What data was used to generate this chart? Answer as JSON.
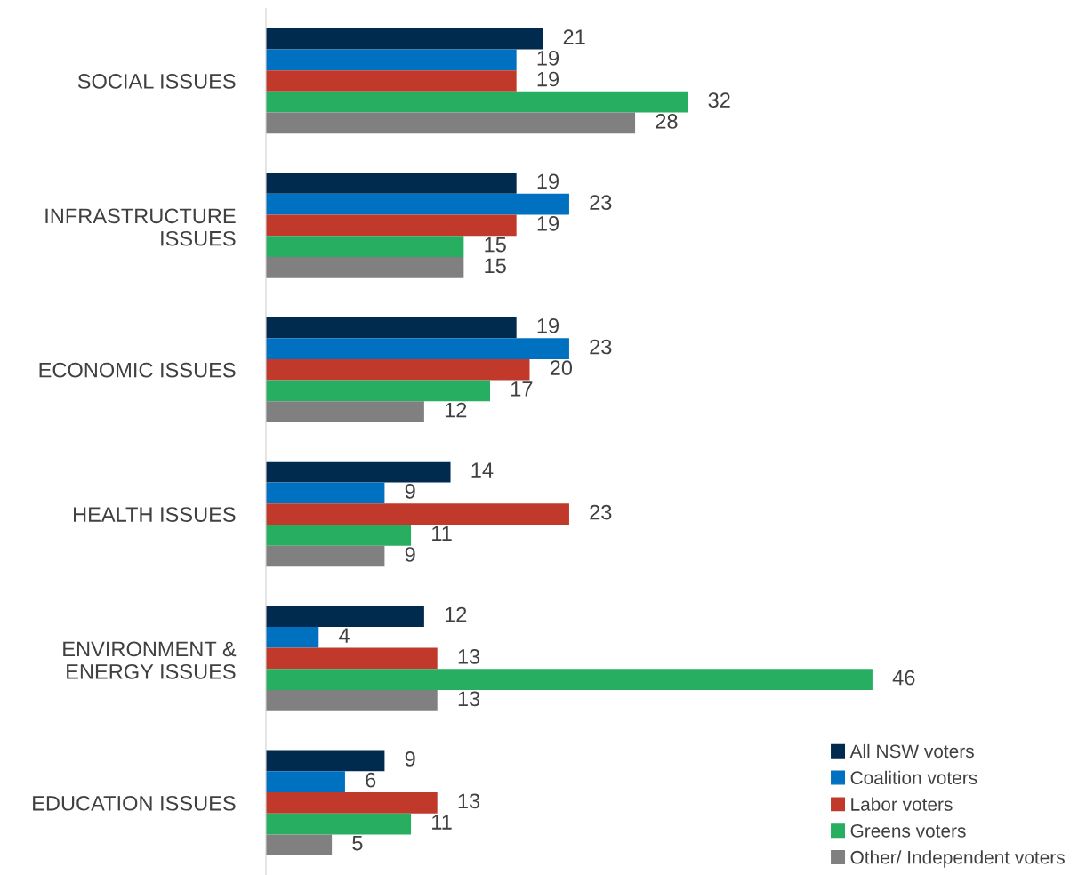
{
  "chart_data": {
    "type": "bar",
    "orientation": "horizontal",
    "categories": [
      "SOCIAL ISSUES",
      "INFRASTRUCTURE\nISSUES",
      "ECONOMIC ISSUES",
      "HEALTH ISSUES",
      "ENVIRONMENT &\nENERGY ISSUES",
      "EDUCATION ISSUES"
    ],
    "series": [
      {
        "name": "All NSW voters",
        "color": "#002b4e",
        "values": [
          21,
          19,
          19,
          14,
          12,
          9
        ]
      },
      {
        "name": "Coalition voters",
        "color": "#0070c0",
        "values": [
          19,
          23,
          23,
          9,
          4,
          6
        ]
      },
      {
        "name": "Labor voters",
        "color": "#c0392b",
        "values": [
          19,
          19,
          20,
          23,
          13,
          13
        ]
      },
      {
        "name": "Greens voters",
        "color": "#27ae60",
        "values": [
          32,
          15,
          17,
          11,
          46,
          11
        ]
      },
      {
        "name": "Other/ Independent voters",
        "color": "#808080",
        "values": [
          28,
          15,
          12,
          9,
          13,
          5
        ]
      }
    ],
    "data_labels": true,
    "legend": "bottom right",
    "grid": false,
    "tick_labels": "y"
  }
}
